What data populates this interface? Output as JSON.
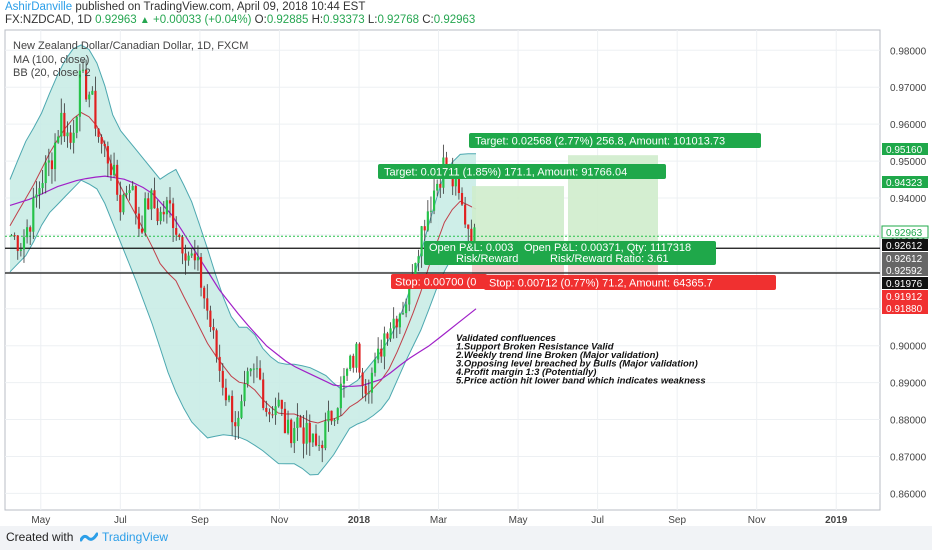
{
  "header": {
    "author": "AshirDanville",
    "published_text": "published on TradingView.com, April 09, 2018 10:44 EST",
    "symbol": "FX:NZDCAD, 1D",
    "last": "0.92963",
    "change": "+0.00033 (+0.04%)",
    "o_label": "O:",
    "o": "0.92885",
    "h_label": "H:",
    "h": "0.93373",
    "l_label": "L:",
    "l": "0.92768",
    "c_label": "C:",
    "c": "0.92963"
  },
  "legend": {
    "title": "New Zealand Dollar/Canadian Dollar, 1D, FXCM",
    "ma": "MA (100, close)",
    "bb": "BB (20, close, 2"
  },
  "footer": {
    "created_with": "Created with",
    "brand": "TradingView"
  },
  "colors": {
    "up": "#26c24a",
    "down": "#e02020",
    "bb_fill": "#c5ebe4",
    "bb_line": "#4da8b0",
    "bb_mid": "#c0404a",
    "ma": "#a020c8",
    "target_green": "#1fa84a",
    "stop_red": "#f03030",
    "zone_green": "#cfeccc",
    "zone_red": "#f4c8c8",
    "price_green": "#1fa84a"
  },
  "notes": {
    "title": "Validated confluences",
    "lines": [
      "1.Support Broken Resistance Valid",
      "2.Weekly trend line Broken (Major validation)",
      "3.Opposing level breached by Bulls (Major validation)",
      "4.Profit margin 1:3 (Potentially)",
      "5.Price action hit lower band which indicates weakness"
    ]
  },
  "chart_data": {
    "type": "candlestick",
    "title": "New Zealand Dollar/Canadian Dollar, 1D, FXCM",
    "ylim": [
      0.8555,
      0.9855
    ],
    "y_ticks": [
      "0.86000",
      "0.87000",
      "0.88000",
      "0.89000",
      "0.90000",
      "0.91000",
      "0.92000",
      "0.93000",
      "0.94000",
      "0.95000",
      "0.96000",
      "0.97000",
      "0.98000"
    ],
    "x_ticks": [
      "May",
      "Jul",
      "Sep",
      "Nov",
      "2018",
      "Mar",
      "May",
      "Jul",
      "Sep",
      "Nov",
      "2019"
    ],
    "grid": true,
    "price_path": [
      0.93,
      0.928,
      0.935,
      0.945,
      0.95,
      0.962,
      0.955,
      0.972,
      0.968,
      0.955,
      0.95,
      0.938,
      0.945,
      0.932,
      0.94,
      0.935,
      0.938,
      0.93,
      0.925,
      0.92,
      0.908,
      0.895,
      0.885,
      0.878,
      0.89,
      0.893,
      0.882,
      0.885,
      0.876,
      0.88,
      0.875,
      0.872,
      0.878,
      0.885,
      0.892,
      0.898,
      0.89,
      0.894,
      0.905,
      0.908,
      0.912,
      0.925,
      0.935,
      0.943,
      0.95,
      0.943,
      0.935,
      0.929
    ],
    "bb_upper_path": [
      0.945,
      0.955,
      0.962,
      0.972,
      0.98,
      0.982,
      0.975,
      0.96,
      0.955,
      0.95,
      0.945,
      0.948,
      0.94,
      0.928,
      0.915,
      0.905,
      0.905,
      0.898,
      0.895,
      0.895,
      0.894,
      0.892,
      0.888,
      0.89,
      0.895,
      0.9,
      0.908,
      0.92,
      0.935,
      0.948,
      0.952,
      0.952
    ],
    "bb_lower_path": [
      0.92,
      0.925,
      0.935,
      0.94,
      0.945,
      0.942,
      0.93,
      0.918,
      0.905,
      0.89,
      0.88,
      0.875,
      0.876,
      0.875,
      0.872,
      0.868,
      0.868,
      0.864,
      0.87,
      0.878,
      0.88,
      0.884,
      0.895,
      0.905,
      0.918,
      0.927,
      0.922
    ],
    "ma_path": [
      0.938,
      0.94,
      0.943,
      0.945,
      0.946,
      0.945,
      0.942,
      0.935,
      0.925,
      0.915,
      0.907,
      0.9,
      0.895,
      0.892,
      0.889,
      0.889,
      0.891,
      0.896,
      0.9,
      0.905,
      0.91
    ],
    "horizontal_lines": [
      0.92612,
      0.92592
    ],
    "current_price_line": 0.92963,
    "price_labels": [
      {
        "value": 0.9516,
        "text": "0.95160",
        "style": "green"
      },
      {
        "value": 0.94323,
        "text": "0.94323",
        "style": "green"
      },
      {
        "value": 0.92963,
        "text": "0.92963",
        "style": "green_outline"
      },
      {
        "value": 0.92612,
        "text": "0.92612",
        "style": "black"
      },
      {
        "value": 0.92612,
        "text": "0.92612",
        "style": "gray"
      },
      {
        "value": 0.92592,
        "text": "0.92592",
        "style": "gray"
      },
      {
        "value": 0.91976,
        "text": "0.91976",
        "style": "black"
      },
      {
        "value": 0.91912,
        "text": "0.91912",
        "style": "red"
      },
      {
        "value": 0.9188,
        "text": "0.91880",
        "style": "red"
      }
    ],
    "positions": [
      {
        "target_label": "Target: 0.01711 (1.85%) 171.1, Amount: 91766.04",
        "target_price": 0.94323,
        "stop_label": "Stop: 0.00700 (0",
        "stop_price": 0.91912,
        "pnl_label": "Open P&L: 0.003",
        "rr_label": "Risk/Reward"
      },
      {
        "target_label": "Target: 0.02568 (2.77%) 256.8, Amount: 101013.73",
        "target_price": 0.9516,
        "stop_label": "Stop: 0.00712 (0.77%) 71.2, Amount: 64365.7",
        "stop_price": 0.9188,
        "pnl_label": "Open P&L: 0.00371, Qty: 1117318",
        "rr_label": "Risk/Reward Ratio: 3.61"
      }
    ]
  }
}
